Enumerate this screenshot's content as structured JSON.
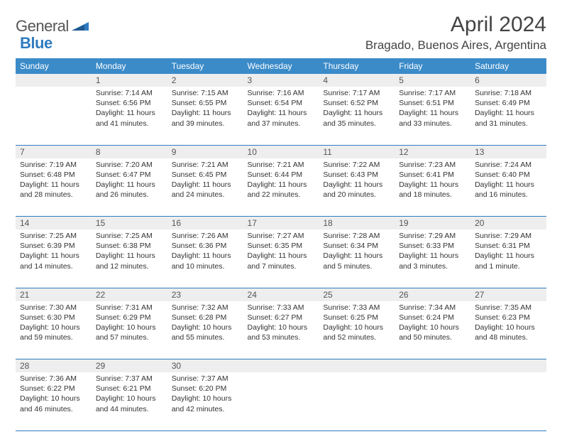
{
  "brand": {
    "name_part1": "General",
    "name_part2": "Blue"
  },
  "title": "April 2024",
  "location": "Bragado, Buenos Aires, Argentina",
  "colors": {
    "header_bg": "#3b8bc9",
    "header_text": "#ffffff",
    "daynum_bg": "#eeeeee",
    "row_border": "#2f7bbf",
    "text": "#333333",
    "brand_gray": "#555555",
    "brand_blue": "#2f7bbf"
  },
  "weekdays": [
    "Sunday",
    "Monday",
    "Tuesday",
    "Wednesday",
    "Thursday",
    "Friday",
    "Saturday"
  ],
  "weeks": [
    [
      null,
      {
        "n": "1",
        "sr": "7:14 AM",
        "ss": "6:56 PM",
        "dh": "11",
        "dm": "41"
      },
      {
        "n": "2",
        "sr": "7:15 AM",
        "ss": "6:55 PM",
        "dh": "11",
        "dm": "39"
      },
      {
        "n": "3",
        "sr": "7:16 AM",
        "ss": "6:54 PM",
        "dh": "11",
        "dm": "37"
      },
      {
        "n": "4",
        "sr": "7:17 AM",
        "ss": "6:52 PM",
        "dh": "11",
        "dm": "35"
      },
      {
        "n": "5",
        "sr": "7:17 AM",
        "ss": "6:51 PM",
        "dh": "11",
        "dm": "33"
      },
      {
        "n": "6",
        "sr": "7:18 AM",
        "ss": "6:49 PM",
        "dh": "11",
        "dm": "31"
      }
    ],
    [
      {
        "n": "7",
        "sr": "7:19 AM",
        "ss": "6:48 PM",
        "dh": "11",
        "dm": "28"
      },
      {
        "n": "8",
        "sr": "7:20 AM",
        "ss": "6:47 PM",
        "dh": "11",
        "dm": "26"
      },
      {
        "n": "9",
        "sr": "7:21 AM",
        "ss": "6:45 PM",
        "dh": "11",
        "dm": "24"
      },
      {
        "n": "10",
        "sr": "7:21 AM",
        "ss": "6:44 PM",
        "dh": "11",
        "dm": "22"
      },
      {
        "n": "11",
        "sr": "7:22 AM",
        "ss": "6:43 PM",
        "dh": "11",
        "dm": "20"
      },
      {
        "n": "12",
        "sr": "7:23 AM",
        "ss": "6:41 PM",
        "dh": "11",
        "dm": "18"
      },
      {
        "n": "13",
        "sr": "7:24 AM",
        "ss": "6:40 PM",
        "dh": "11",
        "dm": "16"
      }
    ],
    [
      {
        "n": "14",
        "sr": "7:25 AM",
        "ss": "6:39 PM",
        "dh": "11",
        "dm": "14"
      },
      {
        "n": "15",
        "sr": "7:25 AM",
        "ss": "6:38 PM",
        "dh": "11",
        "dm": "12"
      },
      {
        "n": "16",
        "sr": "7:26 AM",
        "ss": "6:36 PM",
        "dh": "11",
        "dm": "10"
      },
      {
        "n": "17",
        "sr": "7:27 AM",
        "ss": "6:35 PM",
        "dh": "11",
        "dm": "7"
      },
      {
        "n": "18",
        "sr": "7:28 AM",
        "ss": "6:34 PM",
        "dh": "11",
        "dm": "5"
      },
      {
        "n": "19",
        "sr": "7:29 AM",
        "ss": "6:33 PM",
        "dh": "11",
        "dm": "3"
      },
      {
        "n": "20",
        "sr": "7:29 AM",
        "ss": "6:31 PM",
        "dh": "11",
        "dm": "1"
      }
    ],
    [
      {
        "n": "21",
        "sr": "7:30 AM",
        "ss": "6:30 PM",
        "dh": "10",
        "dm": "59"
      },
      {
        "n": "22",
        "sr": "7:31 AM",
        "ss": "6:29 PM",
        "dh": "10",
        "dm": "57"
      },
      {
        "n": "23",
        "sr": "7:32 AM",
        "ss": "6:28 PM",
        "dh": "10",
        "dm": "55"
      },
      {
        "n": "24",
        "sr": "7:33 AM",
        "ss": "6:27 PM",
        "dh": "10",
        "dm": "53"
      },
      {
        "n": "25",
        "sr": "7:33 AM",
        "ss": "6:25 PM",
        "dh": "10",
        "dm": "52"
      },
      {
        "n": "26",
        "sr": "7:34 AM",
        "ss": "6:24 PM",
        "dh": "10",
        "dm": "50"
      },
      {
        "n": "27",
        "sr": "7:35 AM",
        "ss": "6:23 PM",
        "dh": "10",
        "dm": "48"
      }
    ],
    [
      {
        "n": "28",
        "sr": "7:36 AM",
        "ss": "6:22 PM",
        "dh": "10",
        "dm": "46"
      },
      {
        "n": "29",
        "sr": "7:37 AM",
        "ss": "6:21 PM",
        "dh": "10",
        "dm": "44"
      },
      {
        "n": "30",
        "sr": "7:37 AM",
        "ss": "6:20 PM",
        "dh": "10",
        "dm": "42"
      },
      null,
      null,
      null,
      null
    ]
  ],
  "labels": {
    "sunrise": "Sunrise:",
    "sunset": "Sunset:",
    "daylight": "Daylight:",
    "hours": "hours",
    "and": "and",
    "minutes": "minutes.",
    "minute": "minute."
  }
}
